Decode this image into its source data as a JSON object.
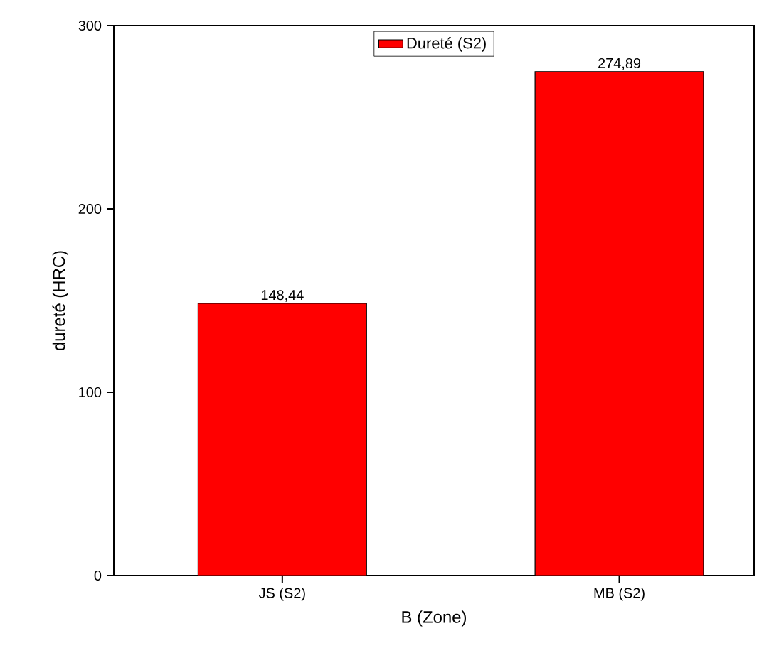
{
  "chart_data": {
    "type": "bar",
    "xlabel": "B (Zone)",
    "ylabel": "dureté (HRC)",
    "categories": [
      "JS (S2)",
      "MB (S2)"
    ],
    "series": [
      {
        "name": "Dureté (S2)",
        "color": "#ff0000",
        "values": [
          148.44,
          274.89
        ],
        "value_labels": [
          "148,44",
          "274,89"
        ]
      }
    ],
    "ylim": [
      0,
      300
    ],
    "yticks": [
      0,
      100,
      200,
      300
    ],
    "legend": "top",
    "grid": false
  }
}
